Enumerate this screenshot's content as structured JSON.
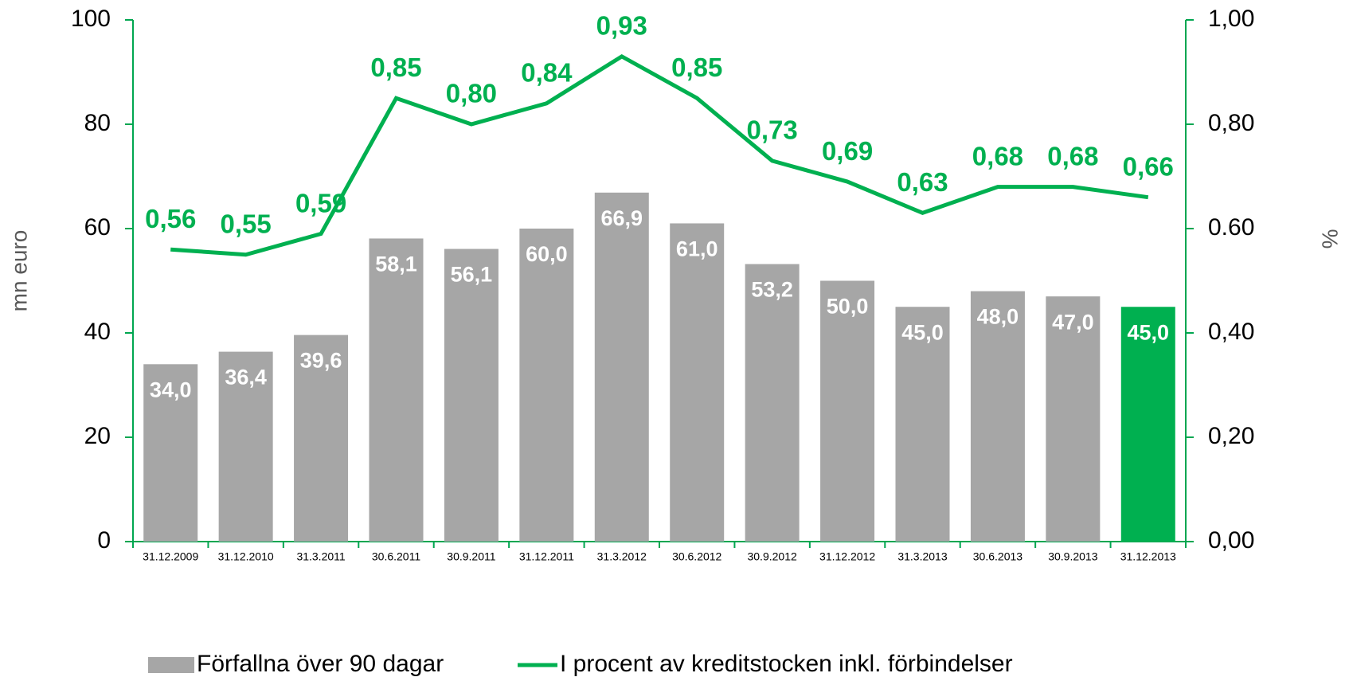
{
  "chart_data": {
    "type": "bar_line",
    "categories": [
      "31.12.2009",
      "31.12.2010",
      "31.3.2011",
      "30.6.2011",
      "30.9.2011",
      "31.12.2011",
      "31.3.2012",
      "30.6.2012",
      "30.9.2012",
      "31.12.2012",
      "31.3.2013",
      "30.6.2013",
      "30.9.2013",
      "31.12.2013"
    ],
    "ylabel": "mn euro",
    "y2label": "%",
    "ylim": [
      0,
      100
    ],
    "yticks": [
      0,
      20,
      40,
      60,
      80,
      100
    ],
    "y2lim": [
      0,
      1
    ],
    "y2ticks": [
      {
        "value": 0,
        "label": "0,00"
      },
      {
        "value": 0.2,
        "label": "0,20"
      },
      {
        "value": 0.4,
        "label": "0,40"
      },
      {
        "value": 0.6,
        "label": "0.60"
      },
      {
        "value": 0.8,
        "label": "0,80"
      },
      {
        "value": 1,
        "label": "1,00"
      }
    ],
    "axis_color": "#00a650",
    "series": [
      {
        "name": "Förfallna över 90 dagar",
        "type": "bar",
        "color": "#a6a6a6",
        "colors": [
          "#a6a6a6",
          "#a6a6a6",
          "#a6a6a6",
          "#a6a6a6",
          "#a6a6a6",
          "#a6a6a6",
          "#a6a6a6",
          "#a6a6a6",
          "#a6a6a6",
          "#a6a6a6",
          "#a6a6a6",
          "#a6a6a6",
          "#a6a6a6",
          "#00b050"
        ],
        "values": [
          34.0,
          36.4,
          39.6,
          58.1,
          56.1,
          60.0,
          66.9,
          61.0,
          53.2,
          50.0,
          45.0,
          48.0,
          47.0,
          45.0
        ],
        "value_labels": [
          "34,0",
          "36,4",
          "39,6",
          "58,1",
          "56,1",
          "60,0",
          "66,9",
          "61,0",
          "53,2",
          "50,0",
          "45,0",
          "48,0",
          "47,0",
          "45,0"
        ]
      },
      {
        "name": "I procent av kreditstocken inkl. förbindelser",
        "type": "line",
        "axis": "y2",
        "color": "#00b050",
        "values": [
          0.56,
          0.55,
          0.59,
          0.85,
          0.8,
          0.84,
          0.93,
          0.85,
          0.73,
          0.69,
          0.63,
          0.68,
          0.68,
          0.66
        ],
        "value_labels": [
          "0,56",
          "0,55",
          "0,59",
          "0,85",
          "0,80",
          "0,84",
          "0,93",
          "0,85",
          "0,73",
          "0,69",
          "0,63",
          "0,68",
          "0,68",
          "0,66"
        ]
      }
    ]
  }
}
